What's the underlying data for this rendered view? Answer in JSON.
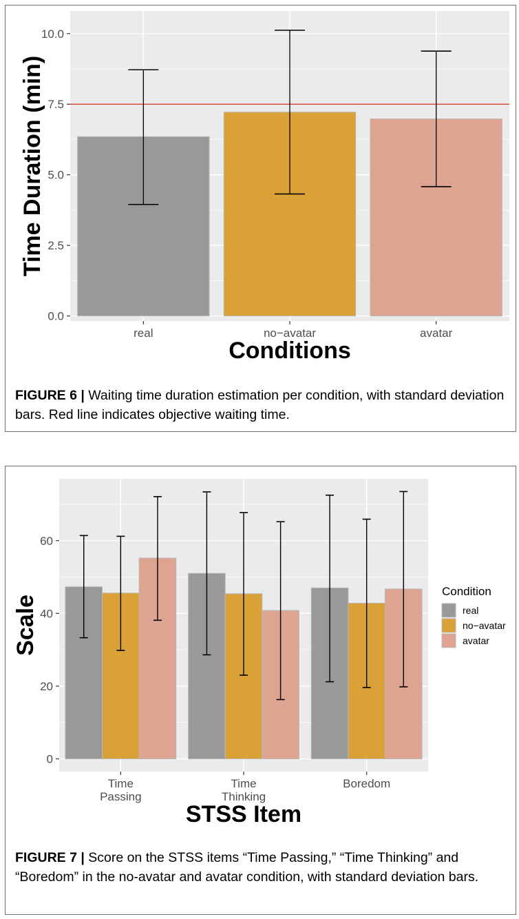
{
  "figure6": {
    "caption_label": "FIGURE 6 |",
    "caption_text": " Waiting time duration estimation per condition, with standard deviation bars. Red line indicates objective waiting time.",
    "colors": {
      "panel": "#ebebeb",
      "grid": "#ffffff",
      "reference_line": "#d42a1e",
      "bar_border": "#b8b8b8"
    },
    "chart_data": {
      "type": "bar",
      "xlabel": "Conditions",
      "ylabel": "Time Duration (min)",
      "categories": [
        "real",
        "no−avatar",
        "avatar"
      ],
      "values": [
        6.35,
        7.22,
        6.98
      ],
      "error_low": [
        3.95,
        4.32,
        4.58
      ],
      "error_high": [
        8.72,
        10.12,
        9.38
      ],
      "colors": [
        "#999999",
        "#daa137",
        "#dea391"
      ],
      "ylim": [
        -0.18,
        10.8
      ],
      "yticks": [
        0,
        2.5,
        5,
        7.5,
        10
      ],
      "ytick_labels": [
        "0.0",
        "2.5",
        "5.0",
        "7.5",
        "10.0"
      ],
      "reference_line": 7.5,
      "grid": true
    }
  },
  "figure7": {
    "caption_label": "FIGURE 7 |",
    "caption_text": " Score on the STSS items “Time Passing,” “Time Thinking” and “Boredom” in the no-avatar and avatar condition, with standard deviation bars.",
    "colors": {
      "panel": "#ebebeb",
      "grid": "#ffffff",
      "bar_border": "#b8b8b8"
    },
    "chart_data": {
      "type": "bar",
      "xlabel": "STSS Item",
      "ylabel": "Scale",
      "categories": [
        [
          "Time",
          "Passing"
        ],
        [
          "Time",
          "Thinking"
        ],
        [
          "Boredom"
        ]
      ],
      "series": [
        {
          "name": "real",
          "color": "#999999",
          "values": [
            47.3,
            51.0,
            47.0
          ],
          "error_low": [
            33.3,
            28.6,
            21.2
          ],
          "error_high": [
            61.4,
            73.4,
            72.5
          ]
        },
        {
          "name": "no−avatar",
          "color": "#daa137",
          "values": [
            45.6,
            45.4,
            42.8
          ],
          "error_low": [
            29.8,
            23.0,
            19.6
          ],
          "error_high": [
            61.2,
            67.7,
            65.9
          ]
        },
        {
          "name": "avatar",
          "color": "#dea391",
          "values": [
            55.2,
            40.8,
            46.7
          ],
          "error_low": [
            38.1,
            16.3,
            19.8
          ],
          "error_high": [
            72.1,
            65.2,
            73.5
          ]
        }
      ],
      "ylim": [
        -3.5,
        77
      ],
      "yticks": [
        0,
        20,
        40,
        60
      ],
      "ytick_labels": [
        "0",
        "20",
        "40",
        "60"
      ],
      "legend_title": "Condition",
      "legend_position": "right",
      "grid": true
    }
  }
}
